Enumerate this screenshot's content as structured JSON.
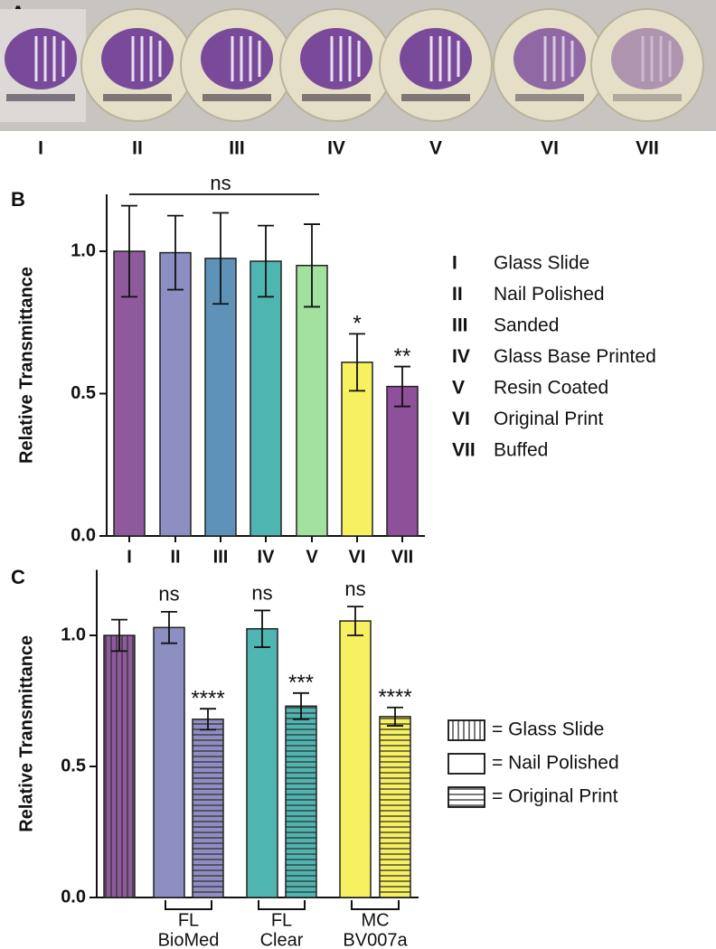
{
  "panel_a": {
    "letter": "A",
    "labels": [
      "I",
      "II",
      "III",
      "IV",
      "V",
      "VI",
      "VII"
    ]
  },
  "chart_data": [
    {
      "type": "bar",
      "panel": "B",
      "ylabel": "Relative Transmittance",
      "categories": [
        "I",
        "II",
        "III",
        "IV",
        "V",
        "VI",
        "VII"
      ],
      "values": [
        1.0,
        0.995,
        0.975,
        0.965,
        0.95,
        0.61,
        0.525
      ],
      "errors": [
        0.16,
        0.13,
        0.16,
        0.125,
        0.145,
        0.1,
        0.07
      ],
      "colors": [
        "#8e5a9c",
        "#8d8ec2",
        "#5f92b9",
        "#4fb5b0",
        "#a2e29e",
        "#f7f060",
        "#8f509b"
      ],
      "annotations": [
        null,
        null,
        null,
        null,
        null,
        "*",
        "**"
      ],
      "group_annotation": "ns",
      "ylim": [
        0,
        1.2
      ],
      "yticks": [
        {
          "value": 0,
          "label": "0.0"
        },
        {
          "value": 0.5,
          "label": "0.5"
        },
        {
          "value": 1,
          "label": "1.0"
        }
      ],
      "legend": [
        {
          "numeral": "I",
          "label": "Glass Slide"
        },
        {
          "numeral": "II",
          "label": "Nail Polished"
        },
        {
          "numeral": "III",
          "label": "Sanded"
        },
        {
          "numeral": "IV",
          "label": "Glass Base Printed"
        },
        {
          "numeral": "V",
          "label": "Resin Coated"
        },
        {
          "numeral": "VI",
          "label": "Original Print"
        },
        {
          "numeral": "VII",
          "label": "Buffed"
        }
      ]
    },
    {
      "type": "bar",
      "panel": "C",
      "ylabel": "Relative Transmittance",
      "categories": [
        null,
        null,
        null,
        null,
        null,
        null,
        null
      ],
      "values": [
        1.0,
        1.03,
        0.68,
        1.025,
        0.73,
        1.055,
        0.69
      ],
      "errors": [
        0.06,
        0.06,
        0.04,
        0.07,
        0.05,
        0.055,
        0.035
      ],
      "colors": [
        "#8e5a9c",
        "#8d8ec2",
        "#8d8ec2",
        "#4fb5b0",
        "#4fb5b0",
        "#f7f060",
        "#f7f060"
      ],
      "patterns": [
        "vertical",
        "solid",
        "horizontal",
        "solid",
        "horizontal",
        "solid",
        "horizontal"
      ],
      "annotations": [
        null,
        "ns",
        "****",
        "ns",
        "***",
        "ns",
        "****"
      ],
      "groups": [
        [
          "FL",
          "BioMed"
        ],
        [
          "FL",
          "Clear"
        ],
        [
          "MC",
          "BV007a"
        ]
      ],
      "ylim": [
        0,
        1.25
      ],
      "yticks": [
        {
          "value": 0,
          "label": "0.0"
        },
        {
          "value": 0.5,
          "label": "0.5"
        },
        {
          "value": 1,
          "label": "1.0"
        }
      ],
      "legend": [
        {
          "pattern": "vertical",
          "label": "= Glass Slide"
        },
        {
          "pattern": "solid",
          "label": "= Nail Polished"
        },
        {
          "pattern": "horizontal",
          "label": "= Original Print"
        }
      ]
    }
  ]
}
